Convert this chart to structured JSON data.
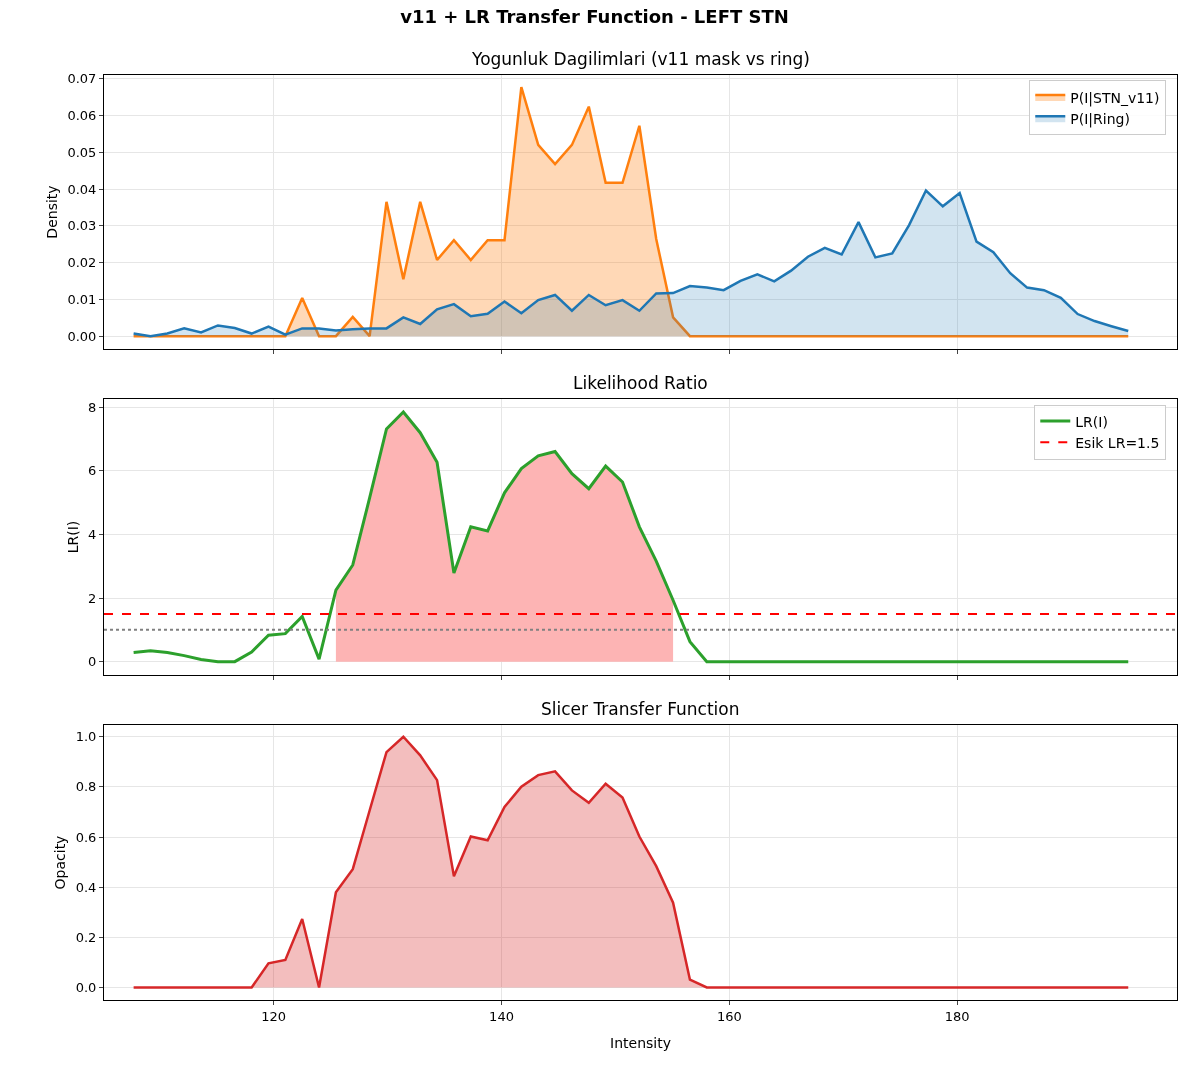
{
  "chart_data": [
    {
      "type": "area",
      "title": "v11 + LR Transfer Function - LEFT STN",
      "subtitle": "Yogunluk Dagilimlari (v11 mask vs ring)",
      "ylabel": "Density",
      "x": [
        107.7,
        109.18,
        110.66,
        112.14,
        113.62,
        115.1,
        116.58,
        118.06,
        119.54,
        121.02,
        122.5,
        123.98,
        125.46,
        126.94,
        128.42,
        129.9,
        131.38,
        132.86,
        134.34,
        135.82,
        137.3,
        138.78,
        140.26,
        141.74,
        143.22,
        144.7,
        146.18,
        147.66,
        149.14,
        150.62,
        152.1,
        153.58,
        155.06,
        156.54,
        158.02,
        159.5,
        160.98,
        162.46,
        163.94,
        165.42,
        166.9,
        168.38,
        169.86,
        171.34,
        172.82,
        174.3,
        175.78,
        177.26,
        178.74,
        180.22,
        181.7,
        183.18,
        184.66,
        186.14,
        187.62,
        189.1,
        190.58,
        192.06,
        193.54,
        195.02
      ],
      "series": [
        {
          "name": "P(I|STN_v11)",
          "color": "#ff7f0e",
          "values": [
            0,
            0,
            0,
            0,
            0,
            0,
            0,
            0,
            0,
            0,
            0.0104,
            0,
            0,
            0.0052,
            0,
            0.0365,
            0.0155,
            0.0365,
            0.0207,
            0.0261,
            0.0207,
            0.0261,
            0.0261,
            0.0677,
            0.052,
            0.0468,
            0.052,
            0.0624,
            0.0417,
            0.0417,
            0.0572,
            0.0264,
            0.0051,
            0,
            0,
            0,
            0,
            0,
            0,
            0,
            0,
            0,
            0,
            0,
            0,
            0,
            0,
            0,
            0,
            0,
            0,
            0,
            0,
            0,
            0,
            0,
            0,
            0,
            0,
            0
          ]
        },
        {
          "name": "P(I|Ring)",
          "color": "#1f77b4",
          "values": [
            0.0007,
            0,
            0.0007,
            0.0021,
            0.001,
            0.0029,
            0.0022,
            0.0007,
            0.0026,
            0.0004,
            0.0021,
            0.0021,
            0.0015,
            0.0019,
            0.0021,
            0.0021,
            0.0051,
            0.0033,
            0.0073,
            0.0087,
            0.0054,
            0.0061,
            0.0094,
            0.0062,
            0.0098,
            0.0112,
            0.0069,
            0.0112,
            0.0084,
            0.0098,
            0.0069,
            0.0116,
            0.0117,
            0.0136,
            0.0132,
            0.0125,
            0.015,
            0.0168,
            0.0149,
            0.0178,
            0.0216,
            0.024,
            0.0222,
            0.031,
            0.0214,
            0.0225,
            0.0302,
            0.0396,
            0.0353,
            0.0389,
            0.0257,
            0.0228,
            0.0171,
            0.0132,
            0.0125,
            0.0104,
            0.006,
            0.0041,
            0.0027,
            0.0014
          ]
        }
      ],
      "xlim": [
        105.1,
        199.3
      ],
      "xticks": [
        120,
        140,
        160,
        180
      ],
      "ylim": [
        -0.0035,
        0.071
      ],
      "yticks": [
        {
          "value": 0,
          "label": "0.00"
        },
        {
          "value": 0.01,
          "label": "0.01"
        },
        {
          "value": 0.02,
          "label": "0.02"
        },
        {
          "value": 0.03,
          "label": "0.03"
        },
        {
          "value": 0.04,
          "label": "0.04"
        },
        {
          "value": 0.05,
          "label": "0.05"
        },
        {
          "value": 0.06,
          "label": "0.06"
        },
        {
          "value": 0.07,
          "label": "0.07"
        }
      ],
      "grid": true,
      "legend": "top right",
      "tick_labels": "y"
    },
    {
      "type": "line",
      "title": "Likelihood Ratio",
      "ylabel": "LR(I)",
      "x": [
        107.7,
        109.18,
        110.66,
        112.14,
        113.62,
        115.1,
        116.58,
        118.06,
        119.54,
        121.02,
        122.5,
        123.98,
        125.46,
        126.94,
        128.42,
        129.9,
        131.38,
        132.86,
        134.34,
        135.82,
        137.3,
        138.78,
        140.26,
        141.74,
        143.22,
        144.7,
        146.18,
        147.66,
        149.14,
        150.62,
        152.1,
        153.58,
        155.06,
        156.54,
        158.02,
        159.5,
        160.98,
        162.46,
        163.94,
        165.42,
        166.9,
        168.38,
        169.86,
        171.34,
        172.82,
        174.3,
        175.78,
        177.26,
        178.74,
        180.22,
        181.7,
        183.18,
        184.66,
        186.14,
        187.62,
        189.1,
        190.58,
        192.06,
        193.54,
        195.02
      ],
      "series": [
        {
          "type": "area",
          "color": "#fdb4b4",
          "values": [
            null,
            null,
            null,
            null,
            null,
            null,
            null,
            null,
            null,
            null,
            null,
            null,
            2.25,
            3.04,
            5.15,
            7.32,
            7.85,
            7.2,
            6.27,
            2.79,
            4.24,
            4.11,
            5.31,
            6.07,
            6.47,
            6.61,
            5.91,
            5.44,
            6.15,
            5.65,
            4.24,
            3.16,
            1.93,
            null,
            null,
            null,
            null,
            null,
            null,
            null,
            null,
            null,
            null,
            null,
            null,
            null,
            null,
            null,
            null,
            null,
            null,
            null,
            null,
            null,
            null,
            null,
            null,
            null,
            null,
            null
          ]
        },
        {
          "name": "LR(I)",
          "color": "#2ca02c",
          "values": [
            0.29,
            0.34,
            0.29,
            0.19,
            0.07,
            0,
            0,
            0.3,
            0.83,
            0.88,
            1.42,
            0.08,
            2.25,
            3.04,
            5.15,
            7.32,
            7.85,
            7.2,
            6.27,
            2.79,
            4.24,
            4.11,
            5.31,
            6.07,
            6.47,
            6.61,
            5.91,
            5.44,
            6.15,
            5.65,
            4.24,
            3.16,
            1.93,
            0.63,
            0,
            0,
            0,
            0,
            0,
            0,
            0,
            0,
            0,
            0,
            0,
            0,
            0,
            0,
            0,
            0,
            0,
            0,
            0,
            0,
            0,
            0,
            0,
            0,
            0,
            0
          ]
        }
      ],
      "ref_lines": [
        {
          "axis": "y",
          "value": 1.5,
          "label": "Esik LR=1.5",
          "color": "#ff0000",
          "line_style": "dashed"
        },
        {
          "axis": "y",
          "value": 1,
          "color": "#808080",
          "line_style": "dotted"
        }
      ],
      "xlim": [
        105.1,
        199.3
      ],
      "xticks": [
        120,
        140,
        160,
        180
      ],
      "ylim": [
        -0.42,
        8.26
      ],
      "yticks": [
        0,
        2,
        4,
        6,
        8
      ],
      "grid": true,
      "legend": "top right",
      "tick_labels": "y"
    },
    {
      "type": "area",
      "title": "Slicer Transfer Function",
      "xlabel": "Intensity",
      "ylabel": "Opacity",
      "x": [
        107.7,
        109.18,
        110.66,
        112.14,
        113.62,
        115.1,
        116.58,
        118.06,
        119.54,
        121.02,
        122.5,
        123.98,
        125.46,
        126.94,
        128.42,
        129.9,
        131.38,
        132.86,
        134.34,
        135.82,
        137.3,
        138.78,
        140.26,
        141.74,
        143.22,
        144.7,
        146.18,
        147.66,
        149.14,
        150.62,
        152.1,
        153.58,
        155.06,
        156.54,
        158.02,
        159.5,
        160.98,
        162.46,
        163.94,
        165.42,
        166.9,
        168.38,
        169.86,
        171.34,
        172.82,
        174.3,
        175.78,
        177.26,
        178.74,
        180.22,
        181.7,
        183.18,
        184.66,
        186.14,
        187.62,
        189.1,
        190.58,
        192.06,
        193.54,
        195.02
      ],
      "series": [
        {
          "color": "#d62728",
          "values": [
            0,
            0,
            0,
            0,
            0,
            0,
            0,
            0,
            0.096,
            0.11,
            0.273,
            0,
            0.38,
            0.472,
            0.706,
            0.939,
            1.0,
            0.926,
            0.827,
            0.444,
            0.602,
            0.587,
            0.72,
            0.801,
            0.847,
            0.862,
            0.786,
            0.737,
            0.813,
            0.758,
            0.602,
            0.484,
            0.338,
            0.031,
            0,
            0,
            0,
            0,
            0,
            0,
            0,
            0,
            0,
            0,
            0,
            0,
            0,
            0,
            0,
            0,
            0,
            0,
            0,
            0,
            0,
            0,
            0,
            0,
            0,
            0
          ]
        }
      ],
      "xlim": [
        105.1,
        199.3
      ],
      "xticks": [
        120,
        140,
        160,
        180
      ],
      "ylim": [
        -0.05,
        1.047
      ],
      "yticks": [
        {
          "value": 0,
          "label": "0.0"
        },
        {
          "value": 0.2,
          "label": "0.2"
        },
        {
          "value": 0.4,
          "label": "0.4"
        },
        {
          "value": 0.6,
          "label": "0.6"
        },
        {
          "value": 0.8,
          "label": "0.8"
        },
        {
          "value": 1.0,
          "label": "1.0"
        }
      ],
      "grid": true
    }
  ]
}
